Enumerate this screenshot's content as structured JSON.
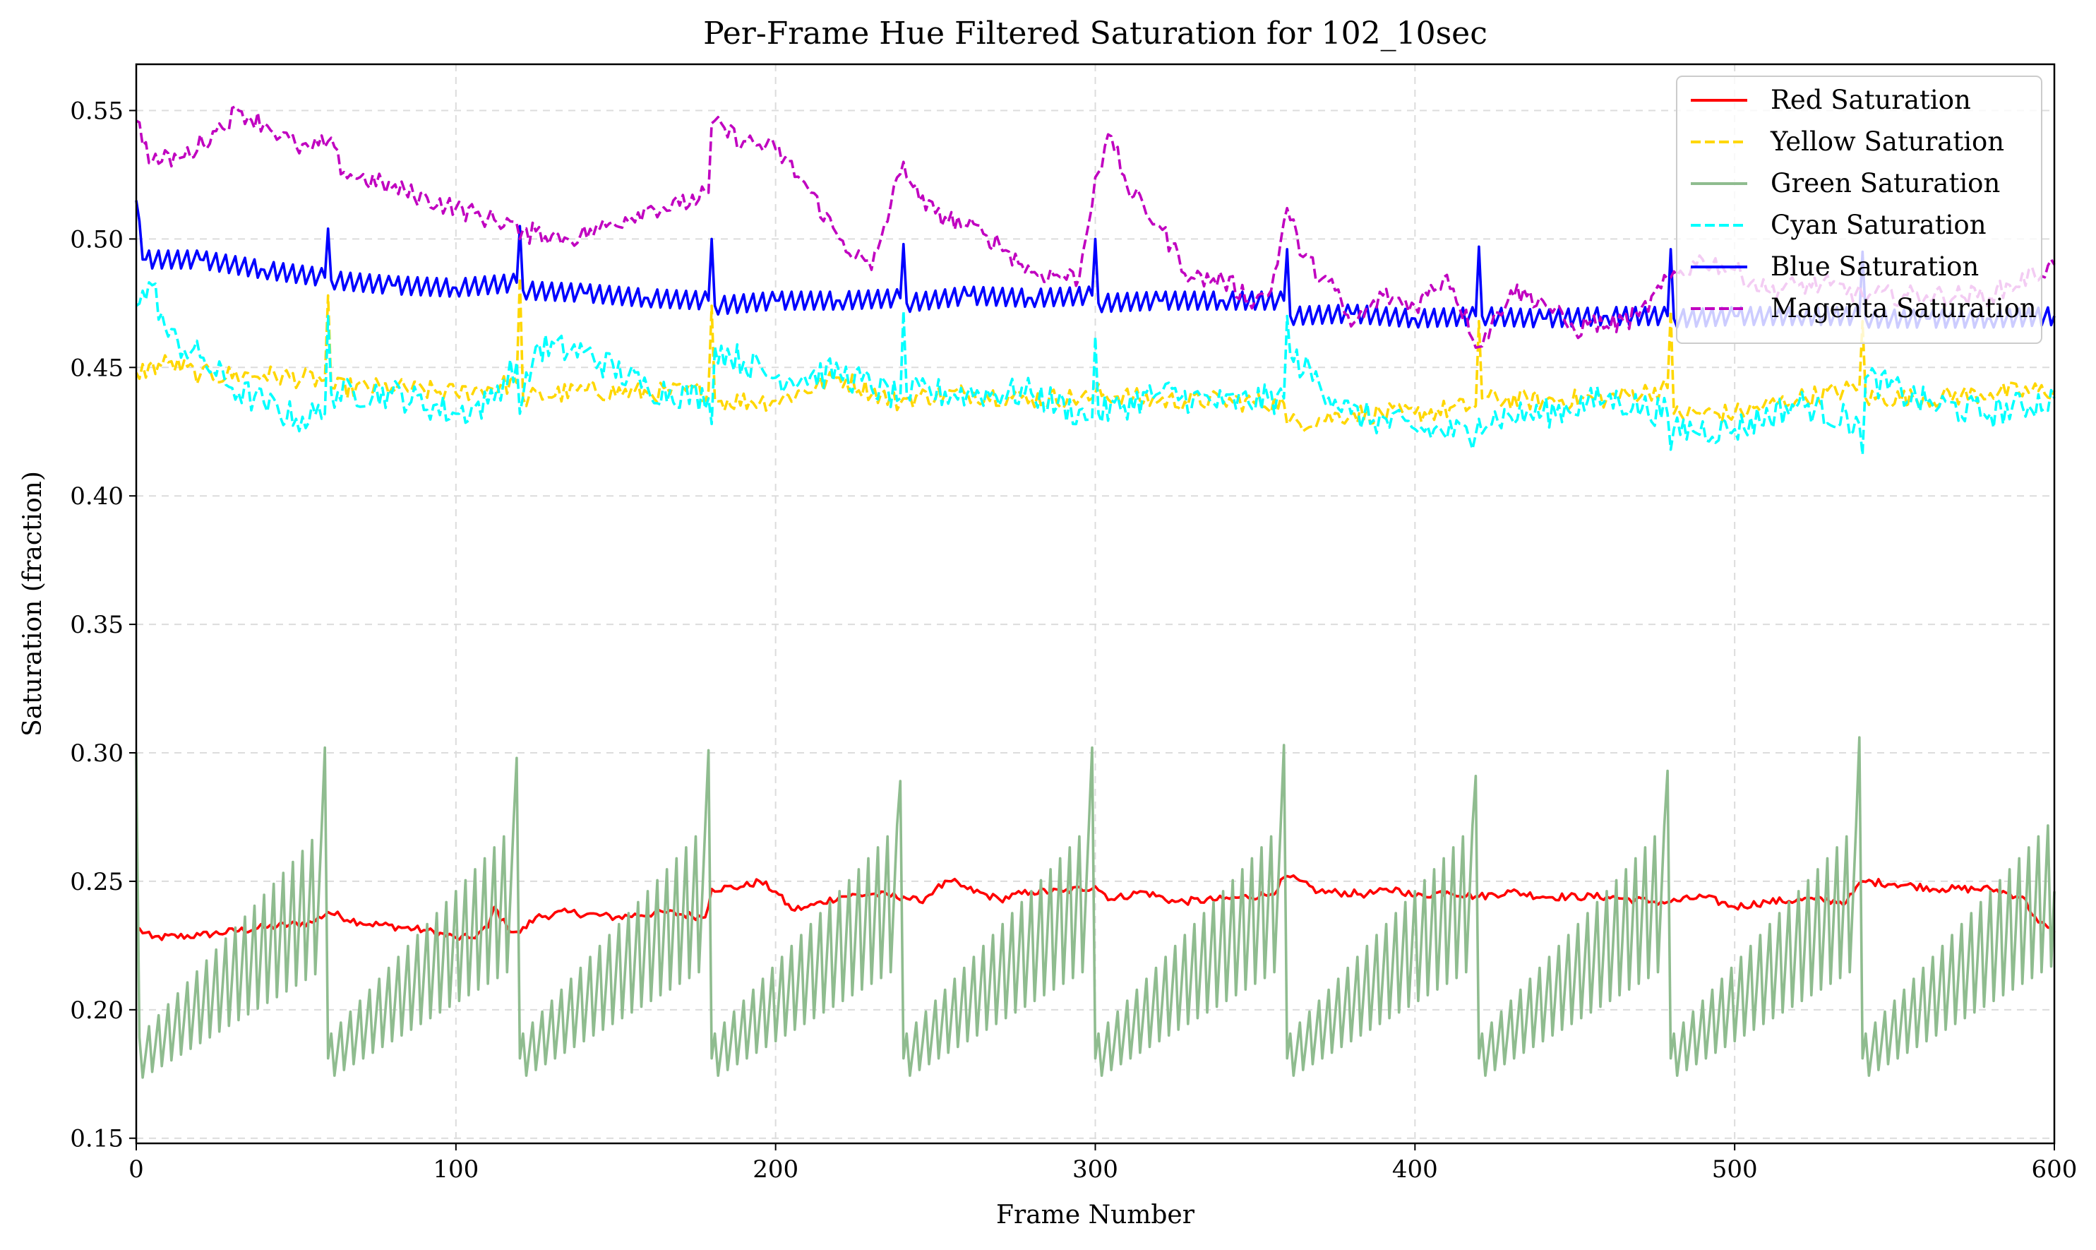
{
  "chart_data": {
    "type": "line",
    "title": "Per-Frame Hue Filtered Saturation for 102_10sec",
    "xlabel": "Frame Number",
    "ylabel": "Saturation (fraction)",
    "xlim": [
      0,
      600
    ],
    "ylim": [
      0.148,
      0.568
    ],
    "x_ticks": [
      0,
      100,
      200,
      300,
      400,
      500,
      600
    ],
    "y_ticks": [
      0.15,
      0.2,
      0.25,
      0.3,
      0.35,
      0.4,
      0.45,
      0.5,
      0.55
    ],
    "grid": true,
    "legend_position": "top-right",
    "frame_step": 1,
    "series": [
      {
        "name": "Red Saturation",
        "color": "#ff0000",
        "style": "solid",
        "keypoints": [
          [
            0,
            0.232
          ],
          [
            5,
            0.228
          ],
          [
            20,
            0.229
          ],
          [
            40,
            0.232
          ],
          [
            55,
            0.234
          ],
          [
            60,
            0.238
          ],
          [
            70,
            0.234
          ],
          [
            90,
            0.231
          ],
          [
            100,
            0.228
          ],
          [
            105,
            0.228
          ],
          [
            110,
            0.232
          ],
          [
            112,
            0.24
          ],
          [
            116,
            0.232
          ],
          [
            120,
            0.23
          ],
          [
            125,
            0.236
          ],
          [
            135,
            0.238
          ],
          [
            150,
            0.236
          ],
          [
            165,
            0.238
          ],
          [
            178,
            0.236
          ],
          [
            180,
            0.247
          ],
          [
            190,
            0.248
          ],
          [
            195,
            0.25
          ],
          [
            200,
            0.246
          ],
          [
            205,
            0.239
          ],
          [
            210,
            0.24
          ],
          [
            220,
            0.244
          ],
          [
            230,
            0.245
          ],
          [
            240,
            0.244
          ],
          [
            245,
            0.242
          ],
          [
            250,
            0.247
          ],
          [
            255,
            0.25
          ],
          [
            260,
            0.247
          ],
          [
            270,
            0.243
          ],
          [
            280,
            0.246
          ],
          [
            290,
            0.246
          ],
          [
            300,
            0.248
          ],
          [
            305,
            0.243
          ],
          [
            315,
            0.246
          ],
          [
            325,
            0.242
          ],
          [
            340,
            0.243
          ],
          [
            355,
            0.245
          ],
          [
            360,
            0.252
          ],
          [
            370,
            0.246
          ],
          [
            385,
            0.245
          ],
          [
            395,
            0.247
          ],
          [
            400,
            0.244
          ],
          [
            410,
            0.246
          ],
          [
            420,
            0.244
          ],
          [
            430,
            0.246
          ],
          [
            440,
            0.244
          ],
          [
            460,
            0.244
          ],
          [
            475,
            0.242
          ],
          [
            480,
            0.242
          ],
          [
            490,
            0.244
          ],
          [
            500,
            0.24
          ],
          [
            510,
            0.242
          ],
          [
            525,
            0.243
          ],
          [
            535,
            0.242
          ],
          [
            540,
            0.25
          ],
          [
            550,
            0.249
          ],
          [
            565,
            0.247
          ],
          [
            580,
            0.247
          ],
          [
            590,
            0.244
          ],
          [
            595,
            0.234
          ],
          [
            600,
            0.23
          ]
        ],
        "noise": 0.0015
      },
      {
        "name": "Yellow Saturation",
        "color": "#ffd700",
        "style": "dashed",
        "keypoints": [
          [
            0,
            0.448
          ],
          [
            10,
            0.452
          ],
          [
            20,
            0.447
          ],
          [
            40,
            0.447
          ],
          [
            59,
            0.445
          ],
          [
            60,
            0.478
          ],
          [
            61,
            0.442
          ],
          [
            80,
            0.442
          ],
          [
            100,
            0.44
          ],
          [
            119,
            0.444
          ],
          [
            120,
            0.485
          ],
          [
            121,
            0.438
          ],
          [
            140,
            0.441
          ],
          [
            160,
            0.44
          ],
          [
            179,
            0.441
          ],
          [
            180,
            0.474
          ],
          [
            181,
            0.437
          ],
          [
            200,
            0.437
          ],
          [
            220,
            0.446
          ],
          [
            239,
            0.436
          ],
          [
            240,
            0.438
          ],
          [
            260,
            0.44
          ],
          [
            280,
            0.438
          ],
          [
            299,
            0.438
          ],
          [
            300,
            0.44
          ],
          [
            320,
            0.437
          ],
          [
            340,
            0.437
          ],
          [
            359,
            0.436
          ],
          [
            360,
            0.428
          ],
          [
            380,
            0.432
          ],
          [
            400,
            0.432
          ],
          [
            419,
            0.435
          ],
          [
            420,
            0.468
          ],
          [
            421,
            0.438
          ],
          [
            440,
            0.437
          ],
          [
            460,
            0.438
          ],
          [
            479,
            0.442
          ],
          [
            480,
            0.472
          ],
          [
            481,
            0.432
          ],
          [
            500,
            0.432
          ],
          [
            520,
            0.438
          ],
          [
            539,
            0.442
          ],
          [
            540,
            0.468
          ],
          [
            541,
            0.438
          ],
          [
            560,
            0.438
          ],
          [
            580,
            0.44
          ],
          [
            600,
            0.441
          ]
        ],
        "noise": 0.004
      },
      {
        "name": "Green Saturation",
        "color": "#8fbc8f",
        "style": "solid",
        "sawtooth": true,
        "period": 60,
        "spikes": [
          0,
          59,
          119,
          179,
          239,
          299,
          359,
          419,
          479,
          539
        ],
        "spike_values": [
          0.3,
          0.302,
          0.298,
          0.301,
          0.289,
          0.302,
          0.303,
          0.291,
          0.293,
          0.306
        ],
        "segment_start": 0.18,
        "segment_end": 0.245,
        "oscillation_period": 3,
        "oscillation_amp": 0.026
      },
      {
        "name": "Cyan Saturation",
        "color": "#00ffff",
        "style": "dashed",
        "keypoints": [
          [
            0,
            0.474
          ],
          [
            5,
            0.482
          ],
          [
            10,
            0.462
          ],
          [
            20,
            0.454
          ],
          [
            30,
            0.442
          ],
          [
            40,
            0.436
          ],
          [
            50,
            0.43
          ],
          [
            59,
            0.432
          ],
          [
            60,
            0.47
          ],
          [
            61,
            0.44
          ],
          [
            80,
            0.44
          ],
          [
            100,
            0.432
          ],
          [
            110,
            0.436
          ],
          [
            119,
            0.452
          ],
          [
            120,
            0.432
          ],
          [
            125,
            0.458
          ],
          [
            140,
            0.456
          ],
          [
            160,
            0.442
          ],
          [
            179,
            0.438
          ],
          [
            180,
            0.428
          ],
          [
            181,
            0.458
          ],
          [
            200,
            0.446
          ],
          [
            220,
            0.448
          ],
          [
            239,
            0.438
          ],
          [
            240,
            0.472
          ],
          [
            241,
            0.44
          ],
          [
            260,
            0.44
          ],
          [
            280,
            0.44
          ],
          [
            299,
            0.43
          ],
          [
            300,
            0.462
          ],
          [
            301,
            0.432
          ],
          [
            320,
            0.44
          ],
          [
            340,
            0.436
          ],
          [
            359,
            0.438
          ],
          [
            360,
            0.47
          ],
          [
            361,
            0.455
          ],
          [
            380,
            0.432
          ],
          [
            400,
            0.426
          ],
          [
            419,
            0.424
          ],
          [
            420,
            0.43
          ],
          [
            440,
            0.432
          ],
          [
            460,
            0.438
          ],
          [
            479,
            0.432
          ],
          [
            480,
            0.418
          ],
          [
            481,
            0.426
          ],
          [
            500,
            0.426
          ],
          [
            520,
            0.436
          ],
          [
            539,
            0.428
          ],
          [
            540,
            0.416
          ],
          [
            541,
            0.446
          ],
          [
            560,
            0.436
          ],
          [
            580,
            0.432
          ],
          [
            600,
            0.438
          ]
        ],
        "noise": 0.006
      },
      {
        "name": "Blue Saturation",
        "color": "#0000ff",
        "style": "solid",
        "keypoints": [
          [
            0,
            0.515
          ],
          [
            2,
            0.492
          ],
          [
            20,
            0.492
          ],
          [
            40,
            0.488
          ],
          [
            59,
            0.485
          ],
          [
            60,
            0.504
          ],
          [
            61,
            0.484
          ],
          [
            80,
            0.482
          ],
          [
            100,
            0.481
          ],
          [
            119,
            0.483
          ],
          [
            120,
            0.505
          ],
          [
            121,
            0.48
          ],
          [
            140,
            0.479
          ],
          [
            160,
            0.477
          ],
          [
            179,
            0.476
          ],
          [
            180,
            0.5
          ],
          [
            181,
            0.474
          ],
          [
            200,
            0.476
          ],
          [
            220,
            0.476
          ],
          [
            239,
            0.477
          ],
          [
            240,
            0.498
          ],
          [
            241,
            0.475
          ],
          [
            260,
            0.478
          ],
          [
            280,
            0.477
          ],
          [
            299,
            0.478
          ],
          [
            300,
            0.5
          ],
          [
            301,
            0.475
          ],
          [
            320,
            0.476
          ],
          [
            340,
            0.476
          ],
          [
            359,
            0.476
          ],
          [
            360,
            0.496
          ],
          [
            361,
            0.47
          ],
          [
            380,
            0.471
          ],
          [
            400,
            0.469
          ],
          [
            419,
            0.47
          ],
          [
            420,
            0.497
          ],
          [
            421,
            0.47
          ],
          [
            440,
            0.469
          ],
          [
            460,
            0.47
          ],
          [
            479,
            0.47
          ],
          [
            480,
            0.496
          ],
          [
            481,
            0.469
          ],
          [
            500,
            0.47
          ],
          [
            520,
            0.47
          ],
          [
            539,
            0.47
          ],
          [
            540,
            0.495
          ],
          [
            541,
            0.469
          ],
          [
            560,
            0.469
          ],
          [
            580,
            0.469
          ],
          [
            600,
            0.47
          ]
        ],
        "oscillation_period": 3,
        "oscillation_amp": 0.004
      },
      {
        "name": "Magenta Saturation",
        "color": "#c000c0",
        "style": "dashed",
        "keypoints": [
          [
            0,
            0.546
          ],
          [
            5,
            0.53
          ],
          [
            15,
            0.532
          ],
          [
            25,
            0.542
          ],
          [
            32,
            0.55
          ],
          [
            40,
            0.545
          ],
          [
            50,
            0.536
          ],
          [
            55,
            0.535
          ],
          [
            60,
            0.538
          ],
          [
            65,
            0.526
          ],
          [
            80,
            0.52
          ],
          [
            100,
            0.512
          ],
          [
            110,
            0.508
          ],
          [
            119,
            0.506
          ],
          [
            120,
            0.5
          ],
          [
            125,
            0.503
          ],
          [
            135,
            0.5
          ],
          [
            145,
            0.504
          ],
          [
            160,
            0.512
          ],
          [
            170,
            0.513
          ],
          [
            179,
            0.518
          ],
          [
            180,
            0.545
          ],
          [
            190,
            0.538
          ],
          [
            200,
            0.535
          ],
          [
            210,
            0.52
          ],
          [
            220,
            0.5
          ],
          [
            230,
            0.488
          ],
          [
            240,
            0.53
          ],
          [
            245,
            0.515
          ],
          [
            250,
            0.51
          ],
          [
            260,
            0.505
          ],
          [
            265,
            0.502
          ],
          [
            270,
            0.498
          ],
          [
            280,
            0.487
          ],
          [
            295,
            0.485
          ],
          [
            300,
            0.524
          ],
          [
            305,
            0.54
          ],
          [
            310,
            0.52
          ],
          [
            320,
            0.505
          ],
          [
            330,
            0.485
          ],
          [
            340,
            0.484
          ],
          [
            350,
            0.476
          ],
          [
            355,
            0.48
          ],
          [
            360,
            0.512
          ],
          [
            365,
            0.493
          ],
          [
            375,
            0.48
          ],
          [
            380,
            0.466
          ],
          [
            390,
            0.478
          ],
          [
            400,
            0.474
          ],
          [
            410,
            0.486
          ],
          [
            420,
            0.458
          ],
          [
            430,
            0.48
          ],
          [
            440,
            0.476
          ],
          [
            450,
            0.464
          ],
          [
            455,
            0.468
          ],
          [
            460,
            0.466
          ],
          [
            470,
            0.47
          ],
          [
            480,
            0.485
          ],
          [
            490,
            0.492
          ],
          [
            500,
            0.488
          ],
          [
            510,
            0.48
          ],
          [
            520,
            0.482
          ],
          [
            530,
            0.482
          ],
          [
            540,
            0.478
          ],
          [
            560,
            0.478
          ],
          [
            580,
            0.478
          ],
          [
            600,
            0.49
          ]
        ],
        "noise": 0.004
      }
    ]
  }
}
